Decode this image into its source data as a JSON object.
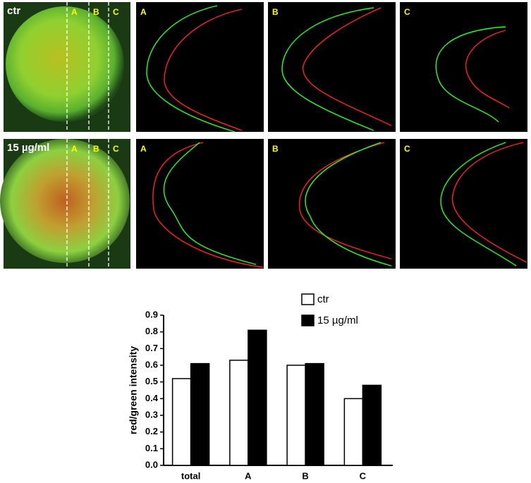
{
  "images": [
    {
      "label": "ctr",
      "lines": [
        "A",
        "B",
        "C"
      ],
      "profiles": [
        "A",
        "B",
        "C"
      ]
    },
    {
      "label": "15 µg/ml",
      "lines": [
        "A",
        "B",
        "C"
      ],
      "profiles": [
        "A",
        "B",
        "C"
      ]
    }
  ],
  "chart_data": {
    "type": "bar",
    "ylabel": "red/green intensity",
    "categories": [
      "total",
      "A",
      "B",
      "C"
    ],
    "series": [
      {
        "name": "ctr",
        "color": "#ffffff",
        "values": [
          0.52,
          0.63,
          0.6,
          0.4
        ]
      },
      {
        "name": "15 µg/ml",
        "color": "#000000",
        "values": [
          0.61,
          0.81,
          0.61,
          0.48
        ]
      }
    ],
    "ylim": [
      0,
      0.9
    ],
    "yticks": [
      {
        "value": 0,
        "label": "0.0"
      },
      0.1,
      0.2,
      0.3,
      0.4,
      0.5,
      0.6,
      0.7,
      0.8,
      0.9
    ],
    "legend": "top-right",
    "grid": false
  }
}
